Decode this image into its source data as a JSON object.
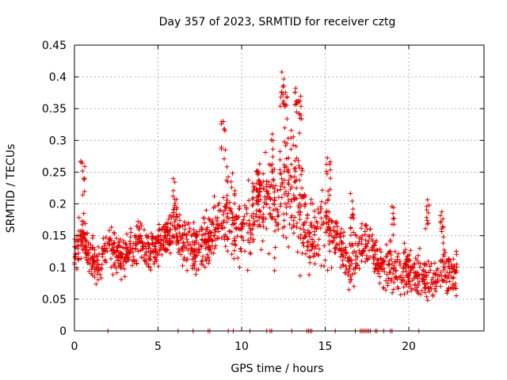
{
  "chart_data": {
    "type": "scatter",
    "title": "Day 357 of 2023, SRMTID for receiver cztg",
    "xlabel": "GPS time / hours",
    "ylabel": "SRMTID / TECUs",
    "xlim": [
      0,
      24.5
    ],
    "ylim": [
      0,
      0.45
    ],
    "xticks": [
      "0",
      "5",
      "10",
      "15",
      "20"
    ],
    "yticks": [
      "0",
      "0.05",
      "0.1",
      "0.15",
      "0.2",
      "0.25",
      "0.3",
      "0.35",
      "0.4",
      "0.45"
    ],
    "grid": true,
    "marker": "plus",
    "color": "#e00000",
    "series": [
      {
        "name": "SRMTID",
        "trend": [
          [
            0.0,
            0.12
          ],
          [
            0.5,
            0.15
          ],
          [
            1.0,
            0.11
          ],
          [
            1.5,
            0.1
          ],
          [
            2.0,
            0.13
          ],
          [
            2.5,
            0.12
          ],
          [
            3.0,
            0.12
          ],
          [
            3.5,
            0.13
          ],
          [
            4.0,
            0.14
          ],
          [
            4.5,
            0.12
          ],
          [
            5.0,
            0.14
          ],
          [
            5.5,
            0.15
          ],
          [
            6.0,
            0.16
          ],
          [
            6.5,
            0.14
          ],
          [
            7.0,
            0.13
          ],
          [
            7.5,
            0.13
          ],
          [
            8.0,
            0.14
          ],
          [
            8.5,
            0.17
          ],
          [
            9.0,
            0.19
          ],
          [
            9.5,
            0.18
          ],
          [
            10.0,
            0.16
          ],
          [
            10.5,
            0.17
          ],
          [
            11.0,
            0.2
          ],
          [
            11.5,
            0.2
          ],
          [
            12.0,
            0.19
          ],
          [
            12.5,
            0.22
          ],
          [
            13.0,
            0.24
          ],
          [
            13.5,
            0.19
          ],
          [
            14.0,
            0.15
          ],
          [
            14.5,
            0.15
          ],
          [
            15.0,
            0.17
          ],
          [
            15.5,
            0.15
          ],
          [
            16.0,
            0.13
          ],
          [
            16.5,
            0.1
          ],
          [
            17.0,
            0.13
          ],
          [
            17.5,
            0.15
          ],
          [
            18.0,
            0.12
          ],
          [
            18.5,
            0.1
          ],
          [
            19.0,
            0.1
          ],
          [
            19.5,
            0.09
          ],
          [
            20.0,
            0.1
          ],
          [
            20.5,
            0.09
          ],
          [
            21.0,
            0.08
          ],
          [
            21.5,
            0.08
          ],
          [
            22.0,
            0.1
          ],
          [
            22.5,
            0.09
          ],
          [
            23.0,
            0.09
          ]
        ],
        "spread": [
          [
            0.0,
            0.035
          ],
          [
            5.0,
            0.035
          ],
          [
            8.5,
            0.045
          ],
          [
            9.0,
            0.07
          ],
          [
            11.0,
            0.06
          ],
          [
            12.5,
            0.09
          ],
          [
            13.5,
            0.1
          ],
          [
            14.0,
            0.05
          ],
          [
            15.0,
            0.06
          ],
          [
            16.0,
            0.04
          ],
          [
            17.0,
            0.04
          ],
          [
            18.0,
            0.04
          ],
          [
            23.0,
            0.035
          ]
        ],
        "peaks": [
          [
            0.5,
            0.27
          ],
          [
            6.0,
            0.24
          ],
          [
            8.9,
            0.33
          ],
          [
            11.0,
            0.28
          ],
          [
            11.9,
            0.31
          ],
          [
            12.4,
            0.41
          ],
          [
            12.6,
            0.39
          ],
          [
            13.3,
            0.4
          ],
          [
            13.5,
            0.37
          ],
          [
            15.2,
            0.28
          ],
          [
            16.6,
            0.22
          ],
          [
            19.0,
            0.2
          ],
          [
            21.1,
            0.21
          ],
          [
            22.0,
            0.2
          ]
        ],
        "zero_points": [
          2.0,
          6.2,
          7.1,
          8.0,
          8.1,
          9.2,
          9.5,
          10.5,
          11.5,
          11.7,
          11.8,
          13.0,
          13.9,
          14.0,
          14.1,
          14.2,
          15.6,
          16.8,
          17.1,
          17.2,
          17.3,
          17.4,
          17.5,
          17.6,
          17.7,
          18.0,
          18.1,
          18.5,
          18.9,
          19.0,
          20.6
        ],
        "x_end": 22.9,
        "count": 1700
      }
    ]
  }
}
